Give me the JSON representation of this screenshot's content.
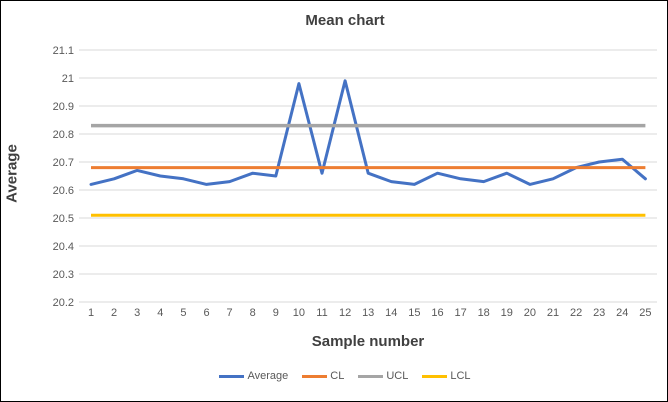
{
  "chart_data": {
    "type": "line",
    "title": "Mean chart",
    "xlabel": "Sample number",
    "ylabel": "Average",
    "x": [
      1,
      2,
      3,
      4,
      5,
      6,
      7,
      8,
      9,
      10,
      11,
      12,
      13,
      14,
      15,
      16,
      17,
      18,
      19,
      20,
      21,
      22,
      23,
      24,
      25
    ],
    "xtick_labels": [
      "1",
      "2",
      "3",
      "4",
      "5",
      "6",
      "7",
      "8",
      "9",
      "10",
      "11",
      "12",
      "13",
      "14",
      "15",
      "16",
      "17",
      "18",
      "19",
      "20",
      "21",
      "22",
      "23",
      "24",
      "25"
    ],
    "series": [
      {
        "name": "Average",
        "color": "#4472C4",
        "width": 3,
        "values": [
          20.62,
          20.64,
          20.67,
          20.65,
          20.64,
          20.62,
          20.63,
          20.66,
          20.65,
          20.98,
          20.66,
          20.99,
          20.66,
          20.63,
          20.62,
          20.66,
          20.64,
          20.63,
          20.66,
          20.62,
          20.64,
          20.68,
          20.7,
          20.71,
          20.64
        ]
      },
      {
        "name": "CL",
        "color": "#ED7D31",
        "width": 3,
        "value": 20.68
      },
      {
        "name": "UCL",
        "color": "#A5A5A5",
        "width": 3.5,
        "value": 20.83
      },
      {
        "name": "LCL",
        "color": "#FFC000",
        "width": 3,
        "value": 20.51
      }
    ],
    "ylim": [
      20.2,
      21.1
    ],
    "yticks": [
      21.1,
      21,
      20.9,
      20.8,
      20.7,
      20.6,
      20.5,
      20.4,
      20.3,
      20.2
    ],
    "ytick_labels": [
      "21.1",
      "21",
      "20.9",
      "20.8",
      "20.7",
      "20.6",
      "20.5",
      "20.4",
      "20.3",
      "20.2"
    ],
    "grid": true,
    "legend_position": "bottom",
    "legend_order": [
      "Average",
      "CL",
      "UCL",
      "LCL"
    ],
    "colors": {
      "gridline": "#D9D9D9",
      "tick_text": "#595959",
      "title_text": "#404040",
      "background": "#FFFFFF",
      "frame": "#000000"
    }
  }
}
